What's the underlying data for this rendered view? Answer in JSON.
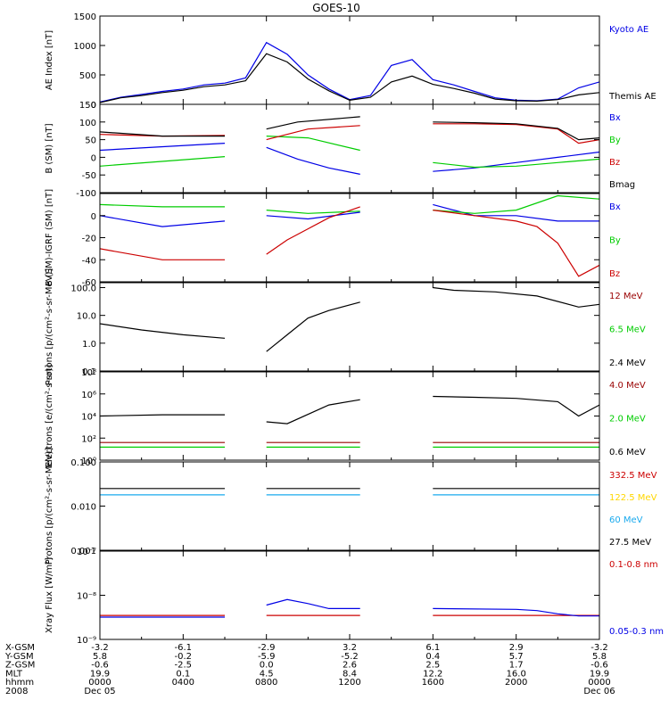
{
  "title": "GOES-10",
  "colors": {
    "black": "#000000",
    "blue": "#0000e6",
    "green": "#00cc00",
    "red": "#cc0000",
    "darkred": "#990000",
    "cyan": "#1aaaee",
    "yellow": "#ffd700"
  },
  "chart_data": [
    {
      "type": "line",
      "id": "ae",
      "ylabel": "AE Index [nT]",
      "ylim": [
        0,
        1500
      ],
      "yticks": [
        0,
        500,
        1000,
        1500
      ],
      "yticklabels": [
        "0",
        "500",
        "1000",
        "1500"
      ],
      "series": [
        {
          "name": "Kyoto AE",
          "color": "#0000e6",
          "x": [
            0,
            1,
            2,
            3,
            4,
            5,
            6,
            7,
            8,
            9,
            10,
            11,
            12,
            13,
            14,
            15,
            16,
            17,
            18,
            19,
            20,
            21,
            22,
            23,
            24
          ],
          "y": [
            40,
            120,
            170,
            220,
            260,
            330,
            360,
            450,
            1050,
            850,
            500,
            260,
            80,
            150,
            660,
            760,
            420,
            330,
            220,
            110,
            70,
            60,
            90,
            280,
            380
          ]
        },
        {
          "name": "Themis AE",
          "color": "#000000",
          "x": [
            0,
            1,
            2,
            3,
            4,
            5,
            6,
            7,
            8,
            9,
            10,
            11,
            12,
            13,
            14,
            15,
            16,
            17,
            18,
            19,
            20,
            21,
            22,
            23,
            24
          ],
          "y": [
            30,
            110,
            150,
            200,
            240,
            300,
            330,
            400,
            860,
            720,
            430,
            230,
            70,
            120,
            380,
            480,
            340,
            270,
            190,
            90,
            60,
            55,
            80,
            160,
            200
          ]
        }
      ]
    },
    {
      "type": "line",
      "id": "bsm",
      "ylabel": "B (SM) [nT]",
      "ylim": [
        -100,
        150
      ],
      "yticks": [
        -100,
        -50,
        0,
        50,
        100,
        150
      ],
      "yticklabels": [
        "-100",
        "-50",
        "0",
        "50",
        "100",
        "150"
      ],
      "series": [
        {
          "name": "Bx",
          "color": "#0000e6",
          "segments": [
            {
              "x": [
                0,
                6
              ],
              "y": [
                20,
                40
              ]
            },
            {
              "x": [
                8,
                9.5,
                11,
                12.5
              ],
              "y": [
                28,
                -5,
                -30,
                -48
              ]
            },
            {
              "x": [
                16,
                18,
                20,
                22,
                24
              ],
              "y": [
                -40,
                -30,
                -15,
                0,
                15
              ]
            }
          ]
        },
        {
          "name": "By",
          "color": "#00cc00",
          "segments": [
            {
              "x": [
                0,
                6
              ],
              "y": [
                -25,
                2
              ]
            },
            {
              "x": [
                8,
                10,
                12.5
              ],
              "y": [
                60,
                55,
                20
              ]
            },
            {
              "x": [
                16,
                18,
                20,
                22,
                24
              ],
              "y": [
                -15,
                -28,
                -25,
                -15,
                -5
              ]
            }
          ]
        },
        {
          "name": "Bz",
          "color": "#cc0000",
          "segments": [
            {
              "x": [
                0,
                3,
                6
              ],
              "y": [
                65,
                60,
                62
              ]
            },
            {
              "x": [
                8,
                10,
                12.5
              ],
              "y": [
                50,
                80,
                90
              ]
            },
            {
              "x": [
                16,
                18,
                20,
                22,
                23,
                24
              ],
              "y": [
                95,
                95,
                93,
                80,
                40,
                50
              ]
            }
          ]
        },
        {
          "name": "Bmag",
          "color": "#000000",
          "segments": [
            {
              "x": [
                0,
                3,
                6
              ],
              "y": [
                72,
                60,
                60
              ]
            },
            {
              "x": [
                8,
                9.5,
                12.5
              ],
              "y": [
                80,
                100,
                115
              ]
            },
            {
              "x": [
                16,
                18,
                20,
                22,
                23,
                24
              ],
              "y": [
                100,
                98,
                95,
                82,
                50,
                55
              ]
            }
          ]
        }
      ]
    },
    {
      "type": "line",
      "id": "bdiff",
      "ylabel": "B (SM)-IGRF (SM) [nT]",
      "ylim": [
        -60,
        20
      ],
      "yticks": [
        -60,
        -40,
        -20,
        0
      ],
      "yticklabels": [
        "-60",
        "-40",
        "-20",
        "0"
      ],
      "series": [
        {
          "name": "Bx",
          "color": "#0000e6",
          "segments": [
            {
              "x": [
                0,
                3,
                6
              ],
              "y": [
                0,
                -10,
                -5
              ]
            },
            {
              "x": [
                8,
                10,
                12.5
              ],
              "y": [
                0,
                -3,
                3
              ]
            },
            {
              "x": [
                16,
                18,
                20,
                22,
                24
              ],
              "y": [
                10,
                0,
                0,
                -5,
                -5
              ]
            }
          ]
        },
        {
          "name": "By",
          "color": "#00cc00",
          "segments": [
            {
              "x": [
                0,
                3,
                6
              ],
              "y": [
                10,
                8,
                8
              ]
            },
            {
              "x": [
                8,
                10,
                12.5
              ],
              "y": [
                5,
                2,
                4
              ]
            },
            {
              "x": [
                16,
                18,
                20,
                22,
                24
              ],
              "y": [
                5,
                2,
                5,
                18,
                15
              ]
            }
          ]
        },
        {
          "name": "Bz",
          "color": "#cc0000",
          "segments": [
            {
              "x": [
                0,
                3,
                6
              ],
              "y": [
                -30,
                -40,
                -40
              ]
            },
            {
              "x": [
                8,
                9,
                10,
                11,
                12.5
              ],
              "y": [
                -35,
                -22,
                -12,
                -2,
                8
              ]
            },
            {
              "x": [
                16,
                18,
                20,
                21,
                22,
                23,
                24
              ],
              "y": [
                5,
                0,
                -5,
                -10,
                -25,
                -55,
                -45
              ]
            }
          ]
        }
      ]
    },
    {
      "type": "line",
      "id": "protons-high",
      "ylabel": "Protons [p/(cm²-s-sr-MeV)]",
      "yscale": "log",
      "ylim": [
        0.1,
        150
      ],
      "yticks": [
        0.1,
        1.0,
        10.0,
        100.0
      ],
      "yticklabels": [
        "0.1",
        "1.0",
        "10.0",
        "100.0"
      ],
      "series": [
        {
          "name": "12 MeV",
          "color": "#990000",
          "segments": []
        },
        {
          "name": "6.5 MeV",
          "color": "#00cc00",
          "segments": []
        },
        {
          "name": "2.4 MeV",
          "color": "#000000",
          "segments": [
            {
              "x": [
                0,
                2,
                4,
                6
              ],
              "y": [
                5,
                3,
                2,
                1.5
              ]
            },
            {
              "x": [
                8,
                9,
                10,
                11,
                12.5
              ],
              "y": [
                0.5,
                2,
                8,
                15,
                30
              ]
            },
            {
              "x": [
                16,
                17,
                19,
                21,
                23,
                24
              ],
              "y": [
                100,
                80,
                70,
                50,
                20,
                25
              ]
            }
          ]
        }
      ]
    },
    {
      "type": "line",
      "id": "electrons",
      "ylabel": "Electrons [e/(cm²-s-sr)]",
      "yscale": "log",
      "ylim": [
        1,
        100000000
      ],
      "yticks": [
        1,
        100,
        10000,
        1000000,
        100000000
      ],
      "yticklabels": [
        "10⁰",
        "10²",
        "10⁴",
        "10⁶",
        "10⁸"
      ],
      "series": [
        {
          "name": "4.0 MeV",
          "color": "#990000",
          "segments": [
            {
              "x": [
                0,
                6
              ],
              "y": [
                40,
                40
              ]
            },
            {
              "x": [
                8,
                12.5
              ],
              "y": [
                40,
                40
              ]
            },
            {
              "x": [
                16,
                24
              ],
              "y": [
                40,
                40
              ]
            }
          ]
        },
        {
          "name": "2.0 MeV",
          "color": "#00cc00",
          "segments": [
            {
              "x": [
                0,
                6
              ],
              "y": [
                15,
                15
              ]
            },
            {
              "x": [
                8,
                12.5
              ],
              "y": [
                15,
                15
              ]
            },
            {
              "x": [
                16,
                24
              ],
              "y": [
                15,
                15
              ]
            }
          ]
        },
        {
          "name": "0.6 MeV",
          "color": "#000000",
          "segments": [
            {
              "x": [
                0,
                3,
                6
              ],
              "y": [
                10000,
                13000,
                13000
              ]
            },
            {
              "x": [
                8,
                9,
                11,
                12.5
              ],
              "y": [
                3000,
                2000,
                100000,
                300000
              ]
            },
            {
              "x": [
                16,
                18,
                20,
                22,
                23,
                24
              ],
              "y": [
                600000,
                500000,
                400000,
                200000,
                10000,
                100000
              ]
            }
          ]
        }
      ]
    },
    {
      "type": "line",
      "id": "protons-low",
      "ylabel": "Protons [p/(cm²-s-sr-MeV)]",
      "yscale": "log",
      "ylim": [
        0.001,
        0.1
      ],
      "yticks": [
        0.001,
        0.01,
        0.1
      ],
      "yticklabels": [
        "0.001",
        "0.010",
        "0.100"
      ],
      "series": [
        {
          "name": "332.5 MeV",
          "color": "#cc0000",
          "segments": []
        },
        {
          "name": "122.5 MeV",
          "color": "#ffd700",
          "segments": []
        },
        {
          "name": "60 MeV",
          "color": "#1aaaee",
          "segments": [
            {
              "x": [
                0,
                6
              ],
              "y": [
                0.018,
                0.018
              ]
            },
            {
              "x": [
                8,
                12.5
              ],
              "y": [
                0.018,
                0.018
              ]
            },
            {
              "x": [
                16,
                24
              ],
              "y": [
                0.018,
                0.018
              ]
            }
          ]
        },
        {
          "name": "27.5 MeV",
          "color": "#000000",
          "segments": [
            {
              "x": [
                0,
                6
              ],
              "y": [
                0.025,
                0.025
              ]
            },
            {
              "x": [
                8,
                12.5
              ],
              "y": [
                0.025,
                0.025
              ]
            },
            {
              "x": [
                16,
                24
              ],
              "y": [
                0.025,
                0.025
              ]
            }
          ]
        }
      ]
    },
    {
      "type": "line",
      "id": "xray",
      "ylabel": "Xray Flux [W/m²]",
      "yscale": "log",
      "ylim": [
        1e-09,
        1e-07
      ],
      "yticks": [
        1e-09,
        1e-08,
        1e-07
      ],
      "yticklabels": [
        "10⁻⁹",
        "10⁻⁸",
        "10⁻⁷"
      ],
      "series": [
        {
          "name": "0.1-0.8 nm",
          "color": "#cc0000",
          "segments": [
            {
              "x": [
                0,
                6
              ],
              "y": [
                3.5e-09,
                3.5e-09
              ]
            },
            {
              "x": [
                8,
                12.5
              ],
              "y": [
                3.5e-09,
                3.5e-09
              ]
            },
            {
              "x": [
                16,
                24
              ],
              "y": [
                3.5e-09,
                3.5e-09
              ]
            }
          ]
        },
        {
          "name": "0.05-0.3 nm",
          "color": "#0000e6",
          "segments": [
            {
              "x": [
                0,
                6
              ],
              "y": [
                3.2e-09,
                3.2e-09
              ]
            },
            {
              "x": [
                8,
                9,
                10,
                11,
                12.5
              ],
              "y": [
                6e-09,
                8e-09,
                6.5e-09,
                5e-09,
                5e-09
              ]
            },
            {
              "x": [
                16,
                20,
                21,
                22,
                23,
                24
              ],
              "y": [
                5e-09,
                4.8e-09,
                4.5e-09,
                3.8e-09,
                3.4e-09,
                3.4e-09
              ]
            }
          ]
        }
      ]
    }
  ],
  "xaxis": {
    "xlim": [
      0,
      24
    ],
    "tick_positions": [
      0,
      4,
      8,
      12,
      16,
      20,
      24
    ],
    "minor_tick_positions": [
      2,
      6,
      10,
      14,
      18,
      22
    ],
    "rows": [
      {
        "label": "X-GSM",
        "values": [
          "-3.2",
          "-6.1",
          "-2.9",
          "3.2",
          "6.1",
          "2.9",
          "-3.2"
        ]
      },
      {
        "label": "Y-GSM",
        "values": [
          "5.8",
          "-0.2",
          "-5.9",
          "-5.2",
          "0.4",
          "5.7",
          "5.8"
        ]
      },
      {
        "label": "Z-GSM",
        "values": [
          "-0.6",
          "-2.5",
          "0.0",
          "2.6",
          "2.5",
          "1.7",
          "-0.6"
        ]
      },
      {
        "label": "MLT",
        "values": [
          "19.9",
          "0.1",
          "4.5",
          "8.4",
          "12.2",
          "16.0",
          "19.9"
        ]
      },
      {
        "label": "hhmm",
        "values": [
          "0000",
          "0400",
          "0800",
          "1200",
          "1600",
          "2000",
          "0000"
        ]
      },
      {
        "label": "2008",
        "values": [
          "Dec 05",
          "",
          "",
          "",
          "",
          "",
          "Dec 06"
        ]
      }
    ]
  }
}
